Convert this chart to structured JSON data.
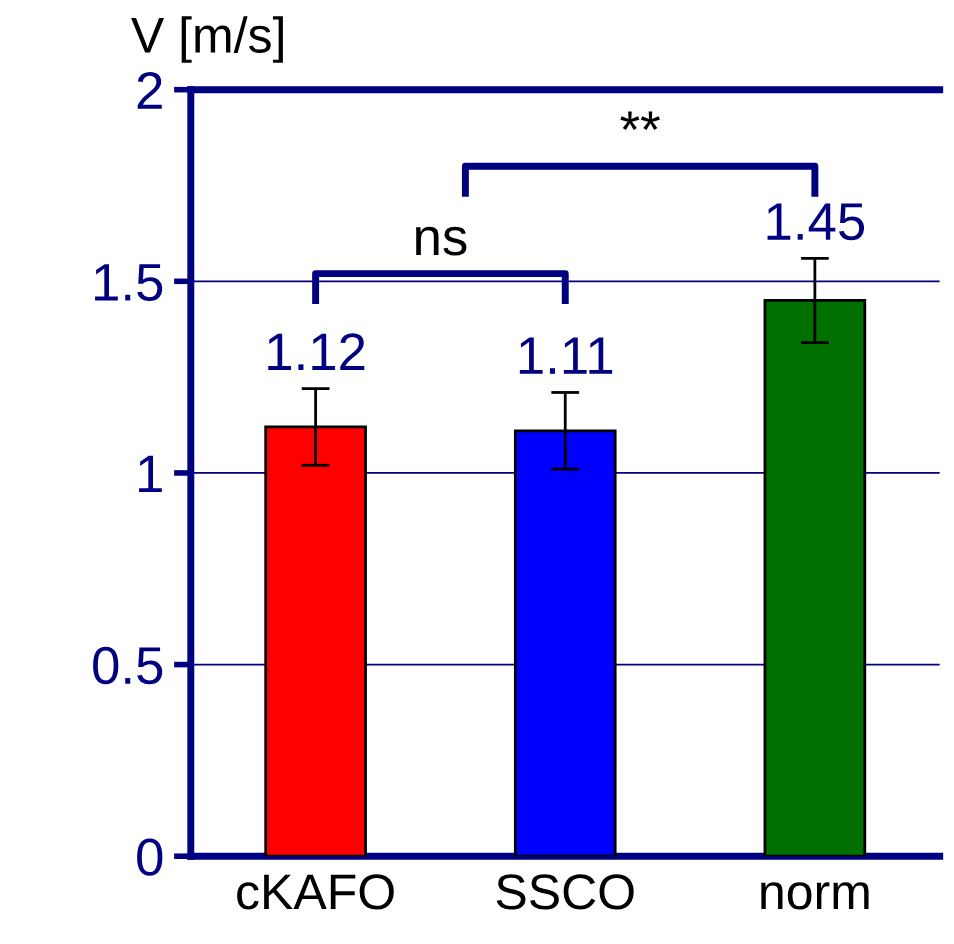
{
  "chart_data": {
    "type": "bar",
    "ylabel": "V [m/s]",
    "categories": [
      "cKAFO",
      "SSCO",
      "norm"
    ],
    "values": [
      1.12,
      1.11,
      1.45
    ],
    "colors": [
      "#ff0000",
      "#0000ff",
      "#007000"
    ],
    "errors": [
      0.1,
      0.1,
      0.11
    ],
    "data_labels": true,
    "ylim": [
      0,
      2
    ],
    "yticks": [
      0,
      0.5,
      1,
      1.5,
      2
    ],
    "grid": "y",
    "annotations": [
      "ns",
      "**"
    ]
  }
}
